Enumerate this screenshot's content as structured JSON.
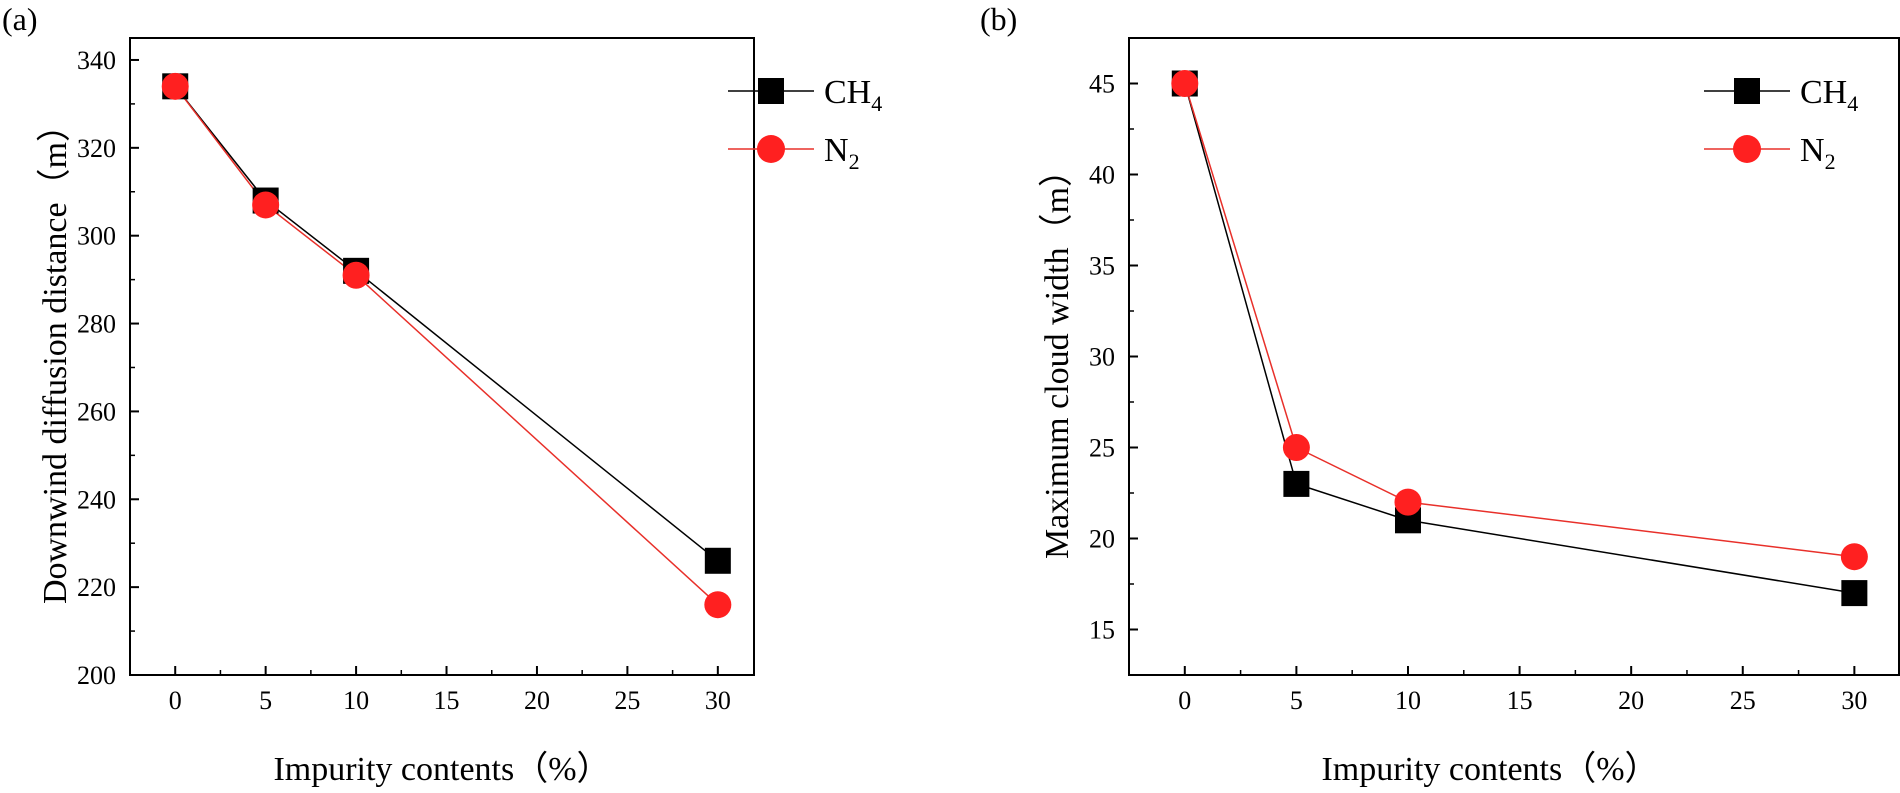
{
  "figure": {
    "panels": [
      "(a)",
      "(b)"
    ]
  },
  "colors": {
    "ch4": "#000000",
    "n2": "#ff2020",
    "n2_line": "#e8302a"
  },
  "chart_data": [
    {
      "type": "line",
      "panel": "(a)",
      "title": "",
      "xlabel": "Impurity contents（%）",
      "ylabel": "Downwind diffusion distance（m）",
      "x": [
        0,
        5,
        10,
        30
      ],
      "xlim": [
        -2.5,
        32
      ],
      "ylim": [
        200,
        345
      ],
      "xticks": [
        0,
        5,
        10,
        15,
        20,
        25,
        30
      ],
      "yticks": [
        200,
        220,
        240,
        260,
        280,
        300,
        320,
        340
      ],
      "series": [
        {
          "name": "CH4",
          "legend_main": "CH",
          "legend_sub": "4",
          "marker": "square",
          "values": [
            334,
            308,
            292,
            226
          ]
        },
        {
          "name": "N2",
          "legend_main": "N",
          "legend_sub": "2",
          "marker": "circle",
          "values": [
            334,
            307,
            291,
            216
          ]
        }
      ],
      "legend": "top-right",
      "grid": false
    },
    {
      "type": "line",
      "panel": "(b)",
      "title": "",
      "xlabel": "Impurity contents（%）",
      "ylabel": "Maximum cloud width（m）",
      "x": [
        0,
        5,
        10,
        30
      ],
      "xlim": [
        -2.5,
        32
      ],
      "ylim": [
        12.5,
        47.5
      ],
      "xticks": [
        0,
        5,
        10,
        15,
        20,
        25,
        30
      ],
      "yticks": [
        15,
        20,
        25,
        30,
        35,
        40,
        45
      ],
      "series": [
        {
          "name": "CH4",
          "legend_main": "CH",
          "legend_sub": "4",
          "marker": "square",
          "values": [
            45,
            23,
            21,
            17
          ]
        },
        {
          "name": "N2",
          "legend_main": "N",
          "legend_sub": "2",
          "marker": "circle",
          "values": [
            45,
            25,
            22,
            19
          ]
        }
      ],
      "legend": "top-right",
      "grid": false
    }
  ]
}
